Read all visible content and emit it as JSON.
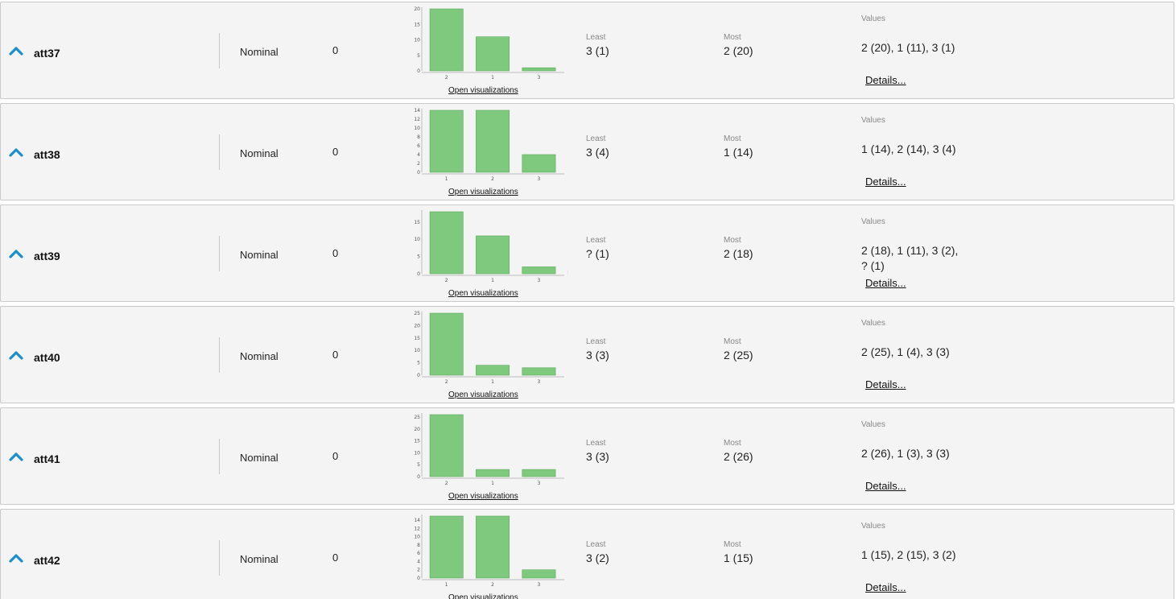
{
  "attributes": [
    {
      "name": "att37",
      "type": "Nominal",
      "missing": "0",
      "least_label": "Least",
      "least": "3 (1)",
      "most_label": "Most",
      "most": "2 (20)",
      "values_label": "Values",
      "values": "2 (20), 1 (11), 3 (1)",
      "details": "Details...",
      "open_viz": "Open visualizations",
      "chart_data": {
        "type": "bar",
        "categories": [
          "2",
          "1",
          "3"
        ],
        "values": [
          20,
          11,
          1
        ],
        "yticks": [
          0,
          5,
          10,
          15,
          20
        ],
        "ylim": [
          0,
          20
        ],
        "title": "",
        "xlabel": "",
        "ylabel": ""
      }
    },
    {
      "name": "att38",
      "type": "Nominal",
      "missing": "0",
      "least_label": "Least",
      "least": "3 (4)",
      "most_label": "Most",
      "most": "1 (14)",
      "values_label": "Values",
      "values": "1 (14), 2 (14), 3 (4)",
      "details": "Details...",
      "open_viz": "Open visualizations",
      "chart_data": {
        "type": "bar",
        "categories": [
          "1",
          "2",
          "3"
        ],
        "values": [
          14,
          14,
          4
        ],
        "yticks": [
          0,
          2,
          4,
          6,
          8,
          10,
          12,
          14
        ],
        "ylim": [
          0,
          14
        ],
        "title": "",
        "xlabel": "",
        "ylabel": ""
      }
    },
    {
      "name": "att39",
      "type": "Nominal",
      "missing": "0",
      "least_label": "Least",
      "least": "? (1)",
      "most_label": "Most",
      "most": "2 (18)",
      "values_label": "Values",
      "values": "2 (18), 1 (11), 3 (2), ? (1)",
      "details": "Details...",
      "open_viz": "Open visualizations",
      "chart_data": {
        "type": "bar",
        "categories": [
          "2",
          "1",
          "3",
          "?"
        ],
        "values": [
          18,
          11,
          2,
          1
        ],
        "yticks": [
          0,
          5,
          10,
          15
        ],
        "ylim": [
          0,
          18
        ],
        "title": "",
        "xlabel": "",
        "ylabel": ""
      }
    },
    {
      "name": "att40",
      "type": "Nominal",
      "missing": "0",
      "least_label": "Least",
      "least": "3 (3)",
      "most_label": "Most",
      "most": "2 (25)",
      "values_label": "Values",
      "values": "2 (25), 1 (4), 3 (3)",
      "details": "Details...",
      "open_viz": "Open visualizations",
      "chart_data": {
        "type": "bar",
        "categories": [
          "2",
          "1",
          "3"
        ],
        "values": [
          25,
          4,
          3
        ],
        "yticks": [
          0,
          5,
          10,
          15,
          20,
          25
        ],
        "ylim": [
          0,
          25
        ],
        "title": "",
        "xlabel": "",
        "ylabel": ""
      }
    },
    {
      "name": "att41",
      "type": "Nominal",
      "missing": "0",
      "least_label": "Least",
      "least": "3 (3)",
      "most_label": "Most",
      "most": "2 (26)",
      "values_label": "Values",
      "values": "2 (26), 1 (3), 3 (3)",
      "details": "Details...",
      "open_viz": "Open visualizations",
      "chart_data": {
        "type": "bar",
        "categories": [
          "2",
          "1",
          "3"
        ],
        "values": [
          26,
          3,
          3
        ],
        "yticks": [
          0,
          5,
          10,
          15,
          20,
          25
        ],
        "ylim": [
          0,
          26
        ],
        "title": "",
        "xlabel": "",
        "ylabel": ""
      }
    },
    {
      "name": "att42",
      "type": "Nominal",
      "missing": "0",
      "least_label": "Least",
      "least": "3 (2)",
      "most_label": "Most",
      "most": "1 (15)",
      "values_label": "Values",
      "values": "1 (15), 2 (15), 3 (2)",
      "details": "Details...",
      "open_viz": "Open visualizations",
      "chart_data": {
        "type": "bar",
        "categories": [
          "1",
          "2",
          "3"
        ],
        "values": [
          15,
          15,
          2
        ],
        "yticks": [
          0,
          2,
          4,
          6,
          8,
          10,
          12,
          14
        ],
        "ylim": [
          0,
          15
        ],
        "title": "",
        "xlabel": "",
        "ylabel": ""
      }
    }
  ],
  "colors": {
    "bar_fill": "#7fc97f",
    "row_background": "#f4f4f4",
    "icon_accent": "#1a8fd0"
  }
}
